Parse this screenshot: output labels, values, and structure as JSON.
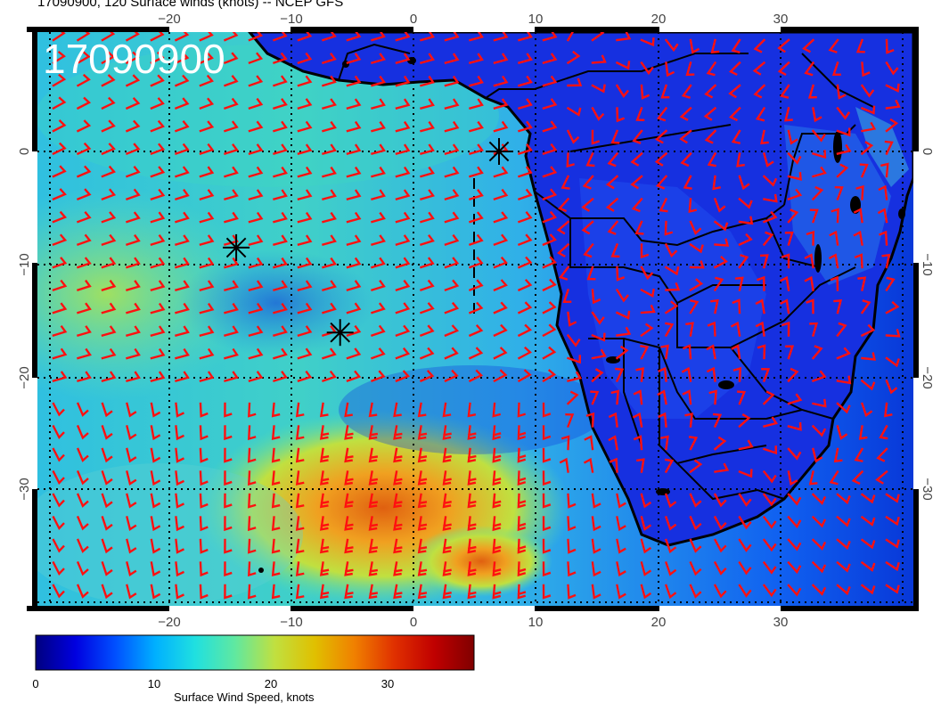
{
  "title": "17090900, 120 Surface winds (knots) -- NCEP GFS",
  "date_stamp": "17090900",
  "map": {
    "lon_range": [
      -30,
      40
    ],
    "lat_range": [
      -40,
      10
    ],
    "lon_ticks": [
      "−20",
      "−10",
      "0",
      "10",
      "20",
      "30"
    ],
    "lat_ticks": [
      "0",
      "−10",
      "−20",
      "−30"
    ],
    "barb_color": "#ff0000",
    "coast_color": "#000000",
    "markers": [
      {
        "name": "storm-marker-1",
        "lon": 7,
        "lat": 0
      },
      {
        "name": "storm-marker-2",
        "lon": -14.5,
        "lat": -8.5
      },
      {
        "name": "storm-marker-3",
        "lon": -6,
        "lat": -16
      }
    ]
  },
  "colorbar": {
    "label": "Surface Wind Speed, knots",
    "ticks": [
      "0",
      "10",
      "20",
      "30"
    ],
    "range": [
      0,
      37
    ],
    "colors": [
      "#00007f",
      "#0000e0",
      "#0050ff",
      "#00b0ff",
      "#20e0e0",
      "#60e8a0",
      "#c0e040",
      "#e0c000",
      "#f08000",
      "#e03000",
      "#c00000",
      "#800000"
    ]
  }
}
